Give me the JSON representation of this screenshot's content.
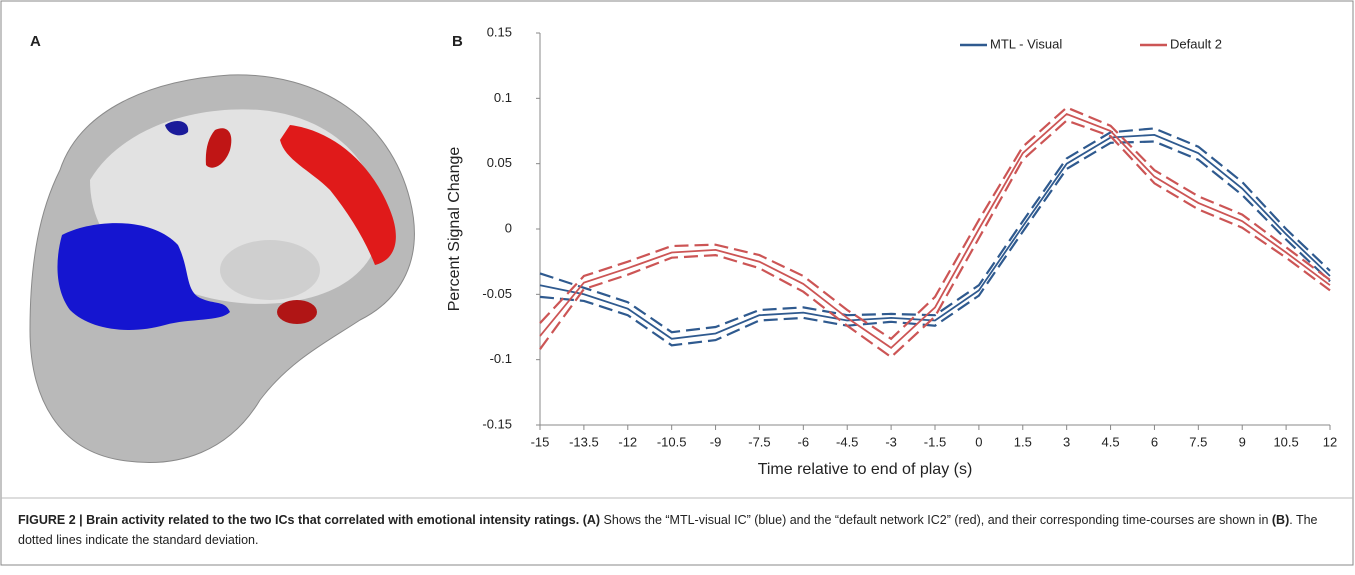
{
  "panels": [
    "A",
    "B"
  ],
  "chart_data": {
    "type": "line",
    "x_label": "Time relative to end of play (s)",
    "y_label": "Percent Signal Change",
    "x": [
      -15,
      -13.5,
      -12,
      -10.5,
      -9,
      -7.5,
      -6,
      -4.5,
      -3,
      -1.5,
      0,
      1.5,
      3,
      4.5,
      6,
      7.5,
      9,
      10.5,
      12
    ],
    "xlim": [
      -15,
      12
    ],
    "xticks": [
      -15,
      -13.5,
      -12,
      -10.5,
      -9,
      -7.5,
      -6,
      -4.5,
      -3,
      -1.5,
      0,
      1.5,
      3,
      4.5,
      6,
      7.5,
      9,
      10.5,
      12
    ],
    "ylim": [
      -0.15,
      0.15
    ],
    "yticks": [
      -0.15,
      -0.1,
      -0.05,
      0,
      0.05,
      0.1,
      0.15
    ],
    "grid": false,
    "legend": "top-right",
    "series": [
      {
        "name": "MTL - Visual",
        "color": "#2f5a8f",
        "values": [
          -0.043,
          -0.05,
          -0.061,
          -0.084,
          -0.08,
          -0.066,
          -0.064,
          -0.07,
          -0.068,
          -0.07,
          -0.047,
          0.002,
          0.05,
          0.07,
          0.072,
          0.058,
          0.031,
          -0.004,
          -0.036
        ],
        "upper": [
          -0.034,
          -0.045,
          -0.056,
          -0.079,
          -0.075,
          -0.062,
          -0.06,
          -0.066,
          -0.065,
          -0.066,
          -0.043,
          0.006,
          0.054,
          0.074,
          0.077,
          0.063,
          0.036,
          0.0,
          -0.032
        ],
        "lower": [
          -0.052,
          -0.055,
          -0.066,
          -0.089,
          -0.085,
          -0.07,
          -0.068,
          -0.074,
          -0.071,
          -0.074,
          -0.051,
          -0.002,
          0.046,
          0.066,
          0.067,
          0.053,
          0.026,
          -0.008,
          -0.04
        ]
      },
      {
        "name": "Default 2",
        "color": "#cc5555",
        "values": [
          -0.082,
          -0.041,
          -0.03,
          -0.018,
          -0.016,
          -0.025,
          -0.042,
          -0.068,
          -0.091,
          -0.06,
          0.0,
          0.058,
          0.088,
          0.075,
          0.04,
          0.02,
          0.006,
          -0.018,
          -0.043
        ],
        "upper": [
          -0.072,
          -0.036,
          -0.025,
          -0.013,
          -0.012,
          -0.02,
          -0.036,
          -0.062,
          -0.084,
          -0.052,
          0.007,
          0.063,
          0.093,
          0.079,
          0.045,
          0.025,
          0.011,
          -0.014,
          -0.039
        ],
        "lower": [
          -0.092,
          -0.046,
          -0.035,
          -0.022,
          -0.02,
          -0.03,
          -0.048,
          -0.074,
          -0.098,
          -0.067,
          -0.007,
          0.053,
          0.083,
          0.071,
          0.035,
          0.015,
          0.001,
          -0.022,
          -0.047
        ]
      }
    ]
  },
  "caption": [
    {
      "text": "FIGURE 2 | Brain activity related to the two ICs that correlated with emotional intensity ratings. (A)",
      "bold": true
    },
    {
      "text": " Shows the “MTL-visual IC” (blue) and the “default network IC2” (red), and their corresponding time-courses are shown in ",
      "bold": false
    },
    {
      "text": "(B)",
      "bold": true
    },
    {
      "text": ". The dotted lines indicate the standard deviation.",
      "bold": false
    }
  ]
}
